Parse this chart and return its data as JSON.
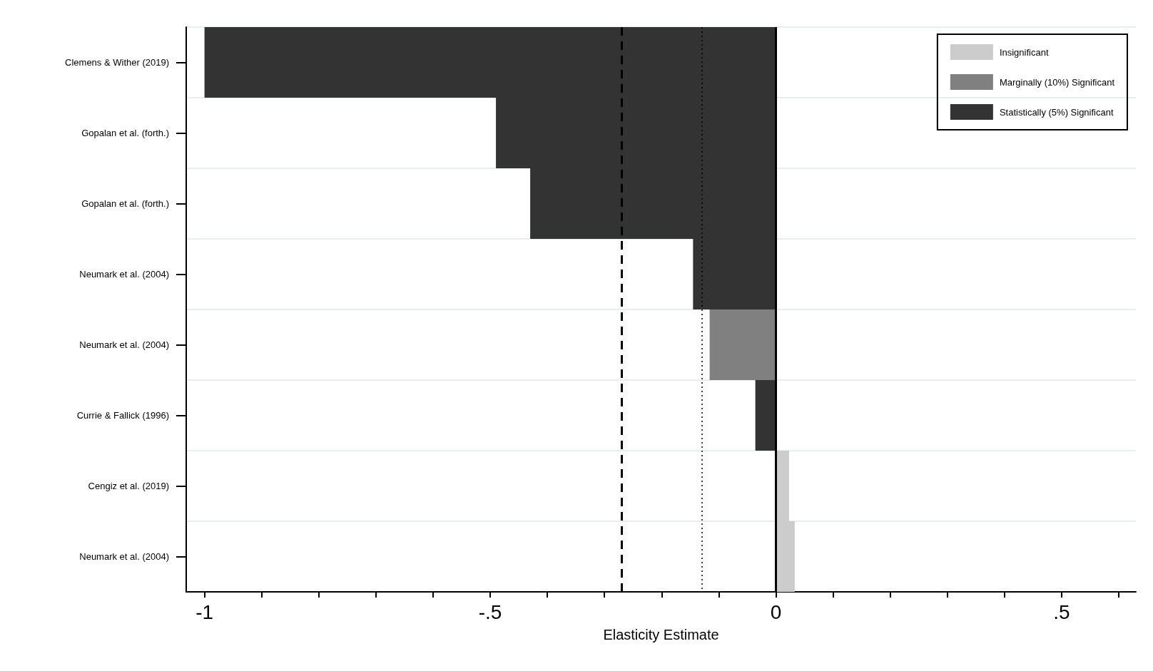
{
  "chart_data": {
    "type": "bar",
    "orientation": "horizontal",
    "xlabel": "Elasticity Estimate",
    "categories": [
      "Clemens & Wither (2019)",
      "Gopalan et al. (forth.)",
      "Gopalan et al. (forth.)",
      "Neumark et al. (2004)",
      "Neumark et al. (2004)",
      "Currie & Fallick (1996)",
      "Cengiz et al. (2019)",
      "Neumark et al. (2004)"
    ],
    "series": [
      {
        "name": "Insignificant",
        "color": "#cccccc",
        "values": [
          null,
          null,
          null,
          null,
          null,
          null,
          0.023,
          0.033
        ]
      },
      {
        "name": "Marginally (10%) Significant",
        "color": "#808080",
        "values": [
          null,
          null,
          null,
          null,
          -0.116,
          null,
          null,
          null
        ]
      },
      {
        "name": "Statistically (5%) Significant",
        "color": "#333333",
        "values": [
          -1.0,
          -0.49,
          -0.43,
          -0.145,
          null,
          -0.036,
          null,
          null
        ]
      }
    ],
    "xlim": [
      -1.032,
      0.63
    ],
    "xticks": [
      {
        "value": -1,
        "label": "-1"
      },
      {
        "value": -0.9,
        "label": null
      },
      {
        "value": -0.8,
        "label": null
      },
      {
        "value": -0.7,
        "label": null
      },
      {
        "value": -0.6,
        "label": null
      },
      {
        "value": -0.5,
        "label": "-.5"
      },
      {
        "value": -0.4,
        "label": null
      },
      {
        "value": -0.3,
        "label": null
      },
      {
        "value": -0.2,
        "label": null
      },
      {
        "value": -0.1,
        "label": null
      },
      {
        "value": 0,
        "label": "0"
      },
      {
        "value": 0.1,
        "label": null
      },
      {
        "value": 0.2,
        "label": null
      },
      {
        "value": 0.3,
        "label": null
      },
      {
        "value": 0.4,
        "label": null
      },
      {
        "value": 0.5,
        "label": ".5"
      },
      {
        "value": 0.6,
        "label": null
      }
    ],
    "ref_lines": [
      {
        "axis": "x",
        "value": 0,
        "color": "#000000",
        "line_style": "solid"
      },
      {
        "axis": "x",
        "value": -0.27,
        "color": "#000000",
        "line_style": "dashed"
      },
      {
        "axis": "x",
        "value": -0.13,
        "color": "#000000",
        "line_style": "dotted"
      }
    ],
    "grid": "y",
    "legend": "top right"
  }
}
